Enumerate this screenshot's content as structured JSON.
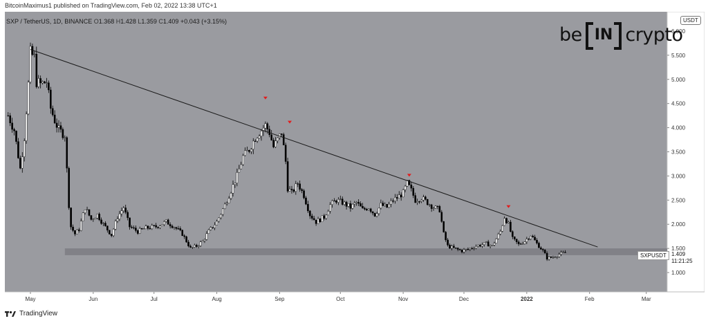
{
  "header": {
    "credit": "BitcoinMaximus1 published on TradingView.com, Feb 02, 2022 13:38 UTC+1"
  },
  "symbol_bar": {
    "title": "SXP / TetherUS, 1D, BINANCE",
    "o_key": "O",
    "o_val": "1.368",
    "h_key": "H",
    "h_val": "1.428",
    "l_key": "L",
    "l_val": "1.359",
    "c_key": "C",
    "c_val": "1.409",
    "change": "+0.043 (+3.15%)"
  },
  "logo": {
    "left": "be",
    "inner": "IN",
    "right": "crypto"
  },
  "currency": "USDT",
  "price_label": {
    "symbol": "SXPUSDT",
    "price": "1.409",
    "countdown": "11:21:25"
  },
  "footer": {
    "brand": "TradingView"
  },
  "colors": {
    "background": "#9a9ba0",
    "candle_up": "#ffffff",
    "candle_down": "#000000",
    "trendline": "#1a1a1a",
    "support_band": "#7c7d82",
    "marker": "#e21d1d"
  },
  "chart_data": {
    "type": "candlestick",
    "x_axis": {
      "ticks": [
        {
          "label": "May",
          "day": 0
        },
        {
          "label": "Jun",
          "day": 31
        },
        {
          "label": "Jul",
          "day": 61
        },
        {
          "label": "Aug",
          "day": 92
        },
        {
          "label": "Sep",
          "day": 123
        },
        {
          "label": "Oct",
          "day": 153
        },
        {
          "label": "Nov",
          "day": 184
        },
        {
          "label": "Dec",
          "day": 214
        },
        {
          "label": "2022",
          "day": 245
        },
        {
          "label": "Feb",
          "day": 276
        },
        {
          "label": "Mar",
          "day": 304
        }
      ]
    },
    "y_axis": {
      "ticks": [
        "1.000",
        "1.500",
        "2.000",
        "2.500",
        "3.000",
        "3.500",
        "4.000",
        "4.500",
        "5.000",
        "5.500",
        "6.000"
      ],
      "range": [
        0.6,
        6.4
      ]
    },
    "anchors": [
      {
        "day": -11,
        "price": 4.25
      },
      {
        "day": -8,
        "price": 3.95
      },
      {
        "day": -5,
        "price": 3.15
      },
      {
        "day": -3,
        "price": 3.8
      },
      {
        "day": -1,
        "price": 4.9
      },
      {
        "day": 0,
        "price": 5.55
      },
      {
        "day": 2,
        "price": 5.45
      },
      {
        "day": 3,
        "price": 4.95
      },
      {
        "day": 5,
        "price": 4.9
      },
      {
        "day": 8,
        "price": 4.95
      },
      {
        "day": 10,
        "price": 4.4
      },
      {
        "day": 12,
        "price": 4.15
      },
      {
        "day": 14,
        "price": 3.95
      },
      {
        "day": 17,
        "price": 3.85
      },
      {
        "day": 19,
        "price": 2.4
      },
      {
        "day": 20,
        "price": 1.95
      },
      {
        "day": 22,
        "price": 1.8
      },
      {
        "day": 24,
        "price": 1.9
      },
      {
        "day": 27,
        "price": 2.35
      },
      {
        "day": 30,
        "price": 2.1
      },
      {
        "day": 33,
        "price": 2.2
      },
      {
        "day": 36,
        "price": 2.0
      },
      {
        "day": 40,
        "price": 1.78
      },
      {
        "day": 43,
        "price": 2.15
      },
      {
        "day": 46,
        "price": 2.35
      },
      {
        "day": 49,
        "price": 1.95
      },
      {
        "day": 53,
        "price": 1.85
      },
      {
        "day": 57,
        "price": 1.92
      },
      {
        "day": 62,
        "price": 1.95
      },
      {
        "day": 67,
        "price": 2.05
      },
      {
        "day": 71,
        "price": 1.95
      },
      {
        "day": 75,
        "price": 1.8
      },
      {
        "day": 79,
        "price": 1.5
      },
      {
        "day": 82,
        "price": 1.55
      },
      {
        "day": 85,
        "price": 1.65
      },
      {
        "day": 88,
        "price": 1.85
      },
      {
        "day": 92,
        "price": 2.05
      },
      {
        "day": 96,
        "price": 2.4
      },
      {
        "day": 99,
        "price": 2.7
      },
      {
        "day": 102,
        "price": 3.0
      },
      {
        "day": 105,
        "price": 3.4
      },
      {
        "day": 108,
        "price": 3.55
      },
      {
        "day": 111,
        "price": 3.8
      },
      {
        "day": 114,
        "price": 3.95
      },
      {
        "day": 116,
        "price": 4.05
      },
      {
        "day": 118,
        "price": 3.9
      },
      {
        "day": 120,
        "price": 3.6
      },
      {
        "day": 122,
        "price": 3.75
      },
      {
        "day": 124,
        "price": 3.9
      },
      {
        "day": 126,
        "price": 3.3
      },
      {
        "day": 127,
        "price": 2.75
      },
      {
        "day": 129,
        "price": 2.65
      },
      {
        "day": 132,
        "price": 2.85
      },
      {
        "day": 135,
        "price": 2.6
      },
      {
        "day": 138,
        "price": 2.2
      },
      {
        "day": 141,
        "price": 2.05
      },
      {
        "day": 145,
        "price": 2.15
      },
      {
        "day": 148,
        "price": 2.4
      },
      {
        "day": 151,
        "price": 2.5
      },
      {
        "day": 154,
        "price": 2.45
      },
      {
        "day": 158,
        "price": 2.35
      },
      {
        "day": 161,
        "price": 2.45
      },
      {
        "day": 164,
        "price": 2.3
      },
      {
        "day": 167,
        "price": 2.35
      },
      {
        "day": 170,
        "price": 2.2
      },
      {
        "day": 173,
        "price": 2.4
      },
      {
        "day": 176,
        "price": 2.35
      },
      {
        "day": 179,
        "price": 2.5
      },
      {
        "day": 181,
        "price": 2.55
      },
      {
        "day": 184,
        "price": 2.65
      },
      {
        "day": 186,
        "price": 2.85
      },
      {
        "day": 188,
        "price": 2.7
      },
      {
        "day": 190,
        "price": 2.5
      },
      {
        "day": 193,
        "price": 2.55
      },
      {
        "day": 196,
        "price": 2.45
      },
      {
        "day": 199,
        "price": 2.35
      },
      {
        "day": 202,
        "price": 2.3
      },
      {
        "day": 204,
        "price": 1.8
      },
      {
        "day": 206,
        "price": 1.55
      },
      {
        "day": 209,
        "price": 1.5
      },
      {
        "day": 213,
        "price": 1.45
      },
      {
        "day": 216,
        "price": 1.48
      },
      {
        "day": 220,
        "price": 1.55
      },
      {
        "day": 225,
        "price": 1.6
      },
      {
        "day": 228,
        "price": 1.55
      },
      {
        "day": 232,
        "price": 1.85
      },
      {
        "day": 234,
        "price": 2.15
      },
      {
        "day": 236,
        "price": 2.0
      },
      {
        "day": 238,
        "price": 1.7
      },
      {
        "day": 241,
        "price": 1.58
      },
      {
        "day": 244,
        "price": 1.65
      },
      {
        "day": 247,
        "price": 1.78
      },
      {
        "day": 250,
        "price": 1.6
      },
      {
        "day": 253,
        "price": 1.45
      },
      {
        "day": 255,
        "price": 1.3
      },
      {
        "day": 258,
        "price": 1.32
      },
      {
        "day": 261,
        "price": 1.38
      },
      {
        "day": 264,
        "price": 1.41
      }
    ],
    "trendline": [
      {
        "day": 0,
        "price": 5.62
      },
      {
        "day": 280,
        "price": 1.53
      }
    ],
    "support_band": {
      "low": 1.36,
      "high": 1.5,
      "start_day": 17
    },
    "markers": [
      {
        "day": 116,
        "price": 4.6
      },
      {
        "day": 128,
        "price": 4.1
      },
      {
        "day": 187,
        "price": 3.0
      },
      {
        "day": 236,
        "price": 2.35
      }
    ]
  }
}
